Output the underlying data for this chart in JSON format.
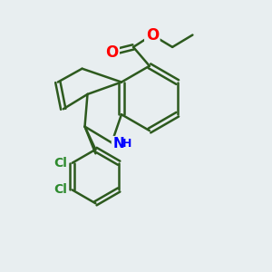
{
  "background_color": "#e8eef0",
  "bond_color": "#2d5a1e",
  "bond_width": 1.8,
  "atom_colors": {
    "O": "#ff0000",
    "N": "#0000ff",
    "Cl": "#2d8a2d",
    "C": "#2d5a1e",
    "H": "#2d5a1e"
  },
  "font_size": 11
}
